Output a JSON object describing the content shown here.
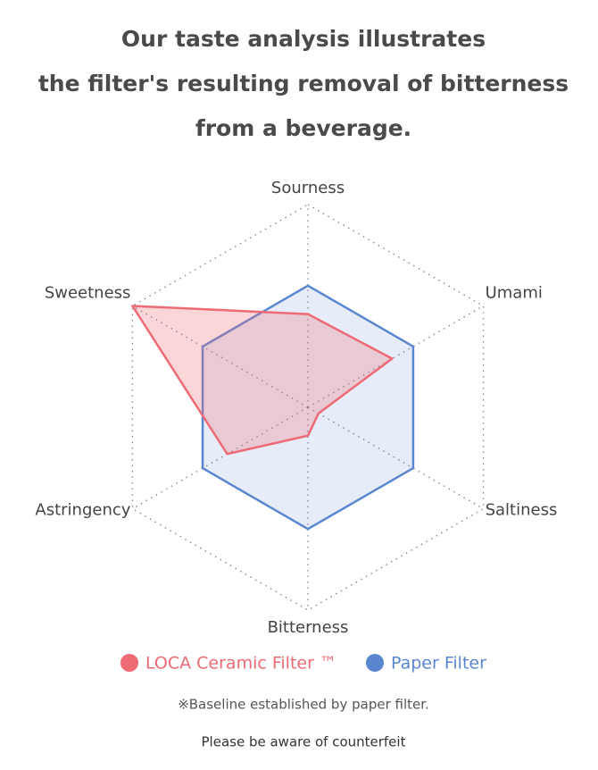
{
  "chart_data": {
    "type": "radar",
    "title": [
      "Our taste analysis illustrates",
      "the filter's resulting removal of bitterness",
      "from a beverage."
    ],
    "categories": [
      "Sourness",
      "Umami",
      "Saltiness",
      "Bitterness",
      "Astringency",
      "Sweetness"
    ],
    "rlim": [
      0,
      5
    ],
    "grid": true,
    "series": [
      {
        "name": "LOCA Ceramic Filter ™",
        "color": "#ee6b76",
        "values": [
          2.3,
          2.4,
          0.3,
          0.7,
          2.3,
          5
        ]
      },
      {
        "name": "Paper Filter",
        "color": "#5a86d0",
        "values": [
          3,
          3,
          3,
          3,
          3,
          3
        ]
      }
    ]
  },
  "note": "※Baseline established by paper filter.",
  "footer": "Please be aware of counterfeit"
}
